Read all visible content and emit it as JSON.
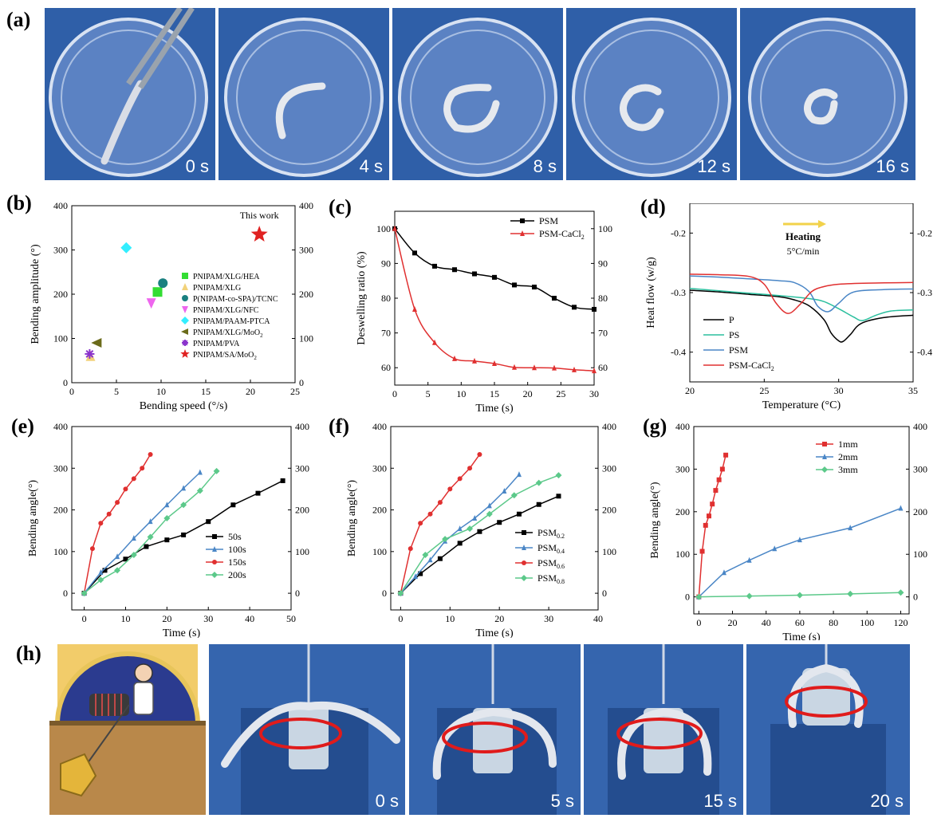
{
  "panels": {
    "a": {
      "letter": "(a)",
      "frames": [
        "0 s",
        "4 s",
        "8 s",
        "12 s",
        "16 s"
      ]
    },
    "b": {
      "letter": "(b)"
    },
    "c": {
      "letter": "(c)"
    },
    "d": {
      "letter": "(d)"
    },
    "e": {
      "letter": "(e)"
    },
    "f": {
      "letter": "(f)"
    },
    "g": {
      "letter": "(g)"
    },
    "h": {
      "letter": "(h)",
      "frames": [
        "0 s",
        "5 s",
        "15 s",
        "20 s"
      ]
    }
  },
  "colors": {
    "black": "#000000",
    "red": "#e03030",
    "blue": "#4a86c6",
    "green": "#5cc98a",
    "teal": "#2bbf9e",
    "photo_blue": "#2f5fa8"
  },
  "chart_data": [
    {
      "id": "b",
      "type": "scatter",
      "title": "",
      "xlabel": "Bending speed (°/s)",
      "ylabel": "Bending amplitude (°)",
      "xlim": [
        0,
        25
      ],
      "ylim": [
        0,
        400
      ],
      "xticks": [
        "0",
        "5",
        "10",
        "15",
        "20",
        "25"
      ],
      "yticks": [
        "0",
        "100",
        "200",
        "300",
        "400"
      ],
      "annotation": "This work",
      "series": [
        {
          "name": "PNIPAM/XLG/HEA",
          "x": 9.6,
          "y": 205,
          "marker": "square",
          "color": "#33dd33"
        },
        {
          "name": "PNIPAM/XLG",
          "x": 2.1,
          "y": 60,
          "marker": "triangle",
          "color": "#f2d27a"
        },
        {
          "name": "P(NIPAM-co-SPA)/TCNC",
          "x": 10.2,
          "y": 225,
          "marker": "circle",
          "color": "#1a8080"
        },
        {
          "name": "PNIPAM/XLG/NFC",
          "x": 8.9,
          "y": 180,
          "marker": "triangle-down",
          "color": "#ee66ee"
        },
        {
          "name": "PNIPAM/PAAM-PTCA",
          "x": 6.1,
          "y": 305,
          "marker": "diamond",
          "color": "#33eeff"
        },
        {
          "name": "PNIPAM/XLG/MoO2",
          "x": 2.8,
          "y": 90,
          "marker": "triangle-left",
          "color": "#6b6b1a"
        },
        {
          "name": "PNIPAM/PVA",
          "x": 2.0,
          "y": 65,
          "marker": "asterisk",
          "color": "#8a33cc"
        },
        {
          "name": "PNIPAM/SA/MoO2",
          "x": 21.0,
          "y": 335,
          "marker": "star",
          "color": "#e02222"
        }
      ]
    },
    {
      "id": "c",
      "type": "line",
      "title": "",
      "xlabel": "Time (s)",
      "ylabel": "Deswelling ratio (%)",
      "xlim": [
        0,
        30
      ],
      "ylim": [
        55,
        105
      ],
      "xticks": [
        "0",
        "5",
        "10",
        "15",
        "20",
        "25",
        "30"
      ],
      "yticks": [
        "60",
        "70",
        "80",
        "90",
        "100"
      ],
      "series": [
        {
          "name": "PSM",
          "marker": "square",
          "color": "#000000",
          "x": [
            0,
            3,
            6,
            9,
            12,
            15,
            18,
            21,
            24,
            27,
            30
          ],
          "y": [
            100,
            93,
            89.2,
            88.2,
            87,
            86,
            83.8,
            83.2,
            80,
            77.4,
            76.8
          ]
        },
        {
          "name": "PSM-CaCl2",
          "marker": "triangle",
          "color": "#e03030",
          "x": [
            0,
            3,
            6,
            9,
            12,
            15,
            18,
            21,
            24,
            27,
            30
          ],
          "y": [
            100,
            76.8,
            67.2,
            62.6,
            61.9,
            61.2,
            60.1,
            60,
            59.9,
            59.4,
            59.1
          ]
        }
      ]
    },
    {
      "id": "d",
      "type": "line",
      "title": "",
      "xlabel": "Temperature (°C)",
      "ylabel": "Heat flow (w/g)",
      "xlim": [
        20,
        35
      ],
      "ylim": [
        -0.45,
        -0.15
      ],
      "xticks": [
        "20",
        "25",
        "30",
        "35"
      ],
      "yticks": [
        "-0.2",
        "-0.3",
        "-0.4"
      ],
      "annotation": "Heating",
      "annotation2": "5°C/min",
      "series": [
        {
          "name": "P",
          "color": "#000000",
          "x": [
            20,
            22,
            24,
            26,
            27,
            28,
            29,
            29.5,
            30,
            30.3,
            30.8,
            31.5,
            33,
            35
          ],
          "y": [
            -0.296,
            -0.299,
            -0.303,
            -0.307,
            -0.312,
            -0.322,
            -0.345,
            -0.368,
            -0.381,
            -0.382,
            -0.37,
            -0.352,
            -0.342,
            -0.338
          ]
        },
        {
          "name": "PS",
          "color": "#2bbf9e",
          "x": [
            20,
            22,
            24,
            26,
            28,
            29,
            30,
            31,
            31.6,
            32.5,
            33.5,
            35
          ],
          "y": [
            -0.293,
            -0.297,
            -0.301,
            -0.305,
            -0.31,
            -0.315,
            -0.327,
            -0.341,
            -0.347,
            -0.338,
            -0.331,
            -0.329
          ]
        },
        {
          "name": "PSM",
          "color": "#4a86c6",
          "x": [
            20,
            22,
            24,
            26,
            27,
            28,
            28.6,
            29.3,
            30,
            31,
            33,
            35
          ],
          "y": [
            -0.272,
            -0.274,
            -0.277,
            -0.28,
            -0.283,
            -0.298,
            -0.323,
            -0.332,
            -0.318,
            -0.299,
            -0.295,
            -0.294
          ]
        },
        {
          "name": "PSM-CaCl2",
          "color": "#e03030",
          "x": [
            20,
            22,
            24,
            25,
            25.8,
            26.6,
            27.4,
            28.2,
            29,
            30,
            32,
            35
          ],
          "y": [
            -0.269,
            -0.27,
            -0.273,
            -0.286,
            -0.318,
            -0.335,
            -0.32,
            -0.298,
            -0.29,
            -0.286,
            -0.284,
            -0.283
          ]
        }
      ]
    },
    {
      "id": "e",
      "type": "line",
      "title": "",
      "xlabel": "Time (s)",
      "ylabel": "Bending angle(°)",
      "xlim": [
        -3,
        50
      ],
      "ylim": [
        -40,
        400
      ],
      "xticks": [
        "0",
        "10",
        "20",
        "30",
        "40",
        "50"
      ],
      "yticks": [
        "0",
        "100",
        "200",
        "300",
        "400"
      ],
      "series": [
        {
          "name": "50s",
          "marker": "square",
          "color": "#000000",
          "x": [
            0,
            5,
            10,
            15,
            20,
            24,
            30,
            36,
            42,
            48
          ],
          "y": [
            0,
            55,
            82,
            112,
            128,
            140,
            172,
            212,
            240,
            270
          ]
        },
        {
          "name": "100s",
          "marker": "triangle",
          "color": "#4a86c6",
          "x": [
            0,
            4,
            8,
            12,
            16,
            20,
            24,
            28
          ],
          "y": [
            0,
            50,
            88,
            132,
            172,
            212,
            252,
            290
          ]
        },
        {
          "name": "150s",
          "marker": "circle",
          "color": "#e03030",
          "x": [
            0,
            2,
            4,
            6,
            8,
            10,
            12,
            14,
            16
          ],
          "y": [
            0,
            107,
            168,
            190,
            218,
            250,
            275,
            300,
            333
          ]
        },
        {
          "name": "200s",
          "marker": "diamond",
          "color": "#5cc98a",
          "x": [
            0,
            4,
            8,
            12,
            16,
            20,
            24,
            28,
            32
          ],
          "y": [
            0,
            32,
            55,
            92,
            135,
            180,
            212,
            246,
            293
          ]
        }
      ]
    },
    {
      "id": "f",
      "type": "line",
      "title": "",
      "xlabel": "Time (s)",
      "ylabel": "Bending angle(°)",
      "xlim": [
        -2,
        40
      ],
      "ylim": [
        -40,
        400
      ],
      "xticks": [
        "0",
        "10",
        "20",
        "30",
        "40"
      ],
      "yticks": [
        "0",
        "100",
        "200",
        "300",
        "400"
      ],
      "series": [
        {
          "name": "PSM0.2",
          "sub": "0.2",
          "marker": "square",
          "color": "#000000",
          "x": [
            0,
            4,
            8,
            12,
            16,
            20,
            24,
            28,
            32
          ],
          "y": [
            0,
            47,
            83,
            120,
            148,
            170,
            190,
            213,
            233
          ]
        },
        {
          "name": "PSM0.4",
          "sub": "0.4",
          "marker": "triangle",
          "color": "#4a86c6",
          "x": [
            0,
            3,
            6,
            9,
            12,
            15,
            18,
            21,
            24
          ],
          "y": [
            0,
            40,
            80,
            125,
            155,
            180,
            210,
            245,
            285
          ]
        },
        {
          "name": "PSM0.6",
          "sub": "0.6",
          "marker": "circle",
          "color": "#e03030",
          "x": [
            0,
            2,
            4,
            6,
            8,
            10,
            12,
            14,
            16
          ],
          "y": [
            0,
            107,
            168,
            190,
            218,
            250,
            275,
            300,
            333
          ]
        },
        {
          "name": "PSM0.8",
          "sub": "0.8",
          "marker": "diamond",
          "color": "#5cc98a",
          "x": [
            0,
            5,
            9,
            14,
            18,
            23,
            28,
            32
          ],
          "y": [
            0,
            92,
            130,
            155,
            190,
            235,
            265,
            283
          ]
        }
      ]
    },
    {
      "id": "g",
      "type": "line",
      "title": "",
      "xlabel": "Time (s)",
      "ylabel": "Bending angle(°)",
      "xlim": [
        -3,
        125
      ],
      "ylim": [
        -40,
        400
      ],
      "xticks": [
        "0",
        "20",
        "40",
        "60",
        "80",
        "100",
        "120"
      ],
      "yticks": [
        "0",
        "100",
        "200",
        "300",
        "400"
      ],
      "series": [
        {
          "name": "1mm",
          "marker": "square",
          "color": "#e03030",
          "x": [
            0,
            2,
            4,
            6,
            8,
            10,
            12,
            14,
            16
          ],
          "y": [
            0,
            107,
            168,
            190,
            218,
            250,
            275,
            300,
            333
          ]
        },
        {
          "name": "2mm",
          "marker": "triangle",
          "color": "#4a86c6",
          "x": [
            0,
            15,
            30,
            45,
            60,
            90,
            120
          ],
          "y": [
            0,
            57,
            86,
            113,
            134,
            162,
            208
          ]
        },
        {
          "name": "3mm",
          "marker": "diamond",
          "color": "#5cc98a",
          "x": [
            0,
            30,
            60,
            90,
            120
          ],
          "y": [
            0,
            2,
            4,
            7,
            10
          ]
        }
      ]
    }
  ]
}
